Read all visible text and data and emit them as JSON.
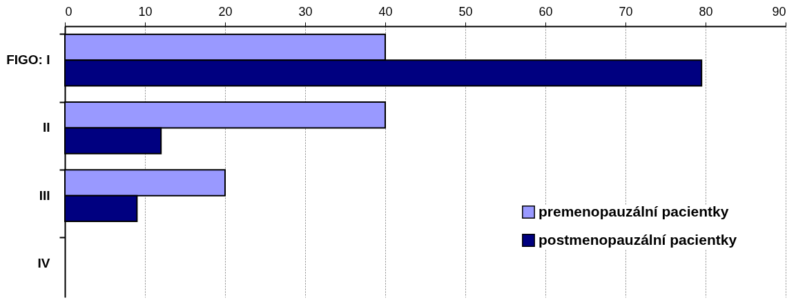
{
  "chart_data": {
    "type": "bar",
    "orientation": "horizontal",
    "categories": [
      "FIGO: I",
      "II",
      "III",
      "IV"
    ],
    "series": [
      {
        "name": "premenopauzální pacientky",
        "color": "#9999ff",
        "values": [
          40,
          40,
          20,
          null
        ]
      },
      {
        "name": "postmenopauzální pacientky",
        "color": "#000080",
        "values": [
          79.5,
          12,
          9,
          null
        ]
      }
    ],
    "xlim": [
      0,
      90
    ],
    "xticks": [
      0,
      10,
      20,
      30,
      40,
      50,
      60,
      70,
      80,
      90
    ],
    "grid": "x",
    "legend": "bottom right"
  }
}
